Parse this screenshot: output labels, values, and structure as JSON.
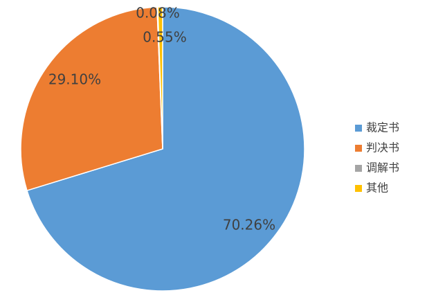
{
  "chart_data": {
    "type": "pie",
    "categories": [
      "裁定书",
      "判决书",
      "调解书",
      "其他"
    ],
    "values": [
      70.26,
      29.1,
      0.08,
      0.55
    ],
    "value_labels": [
      "70.26%",
      "29.10%",
      "0.08%",
      "0.55%"
    ],
    "colors": [
      "#5b9bd5",
      "#ed7d31",
      "#a5a5a5",
      "#ffc000"
    ],
    "legend": "right"
  }
}
